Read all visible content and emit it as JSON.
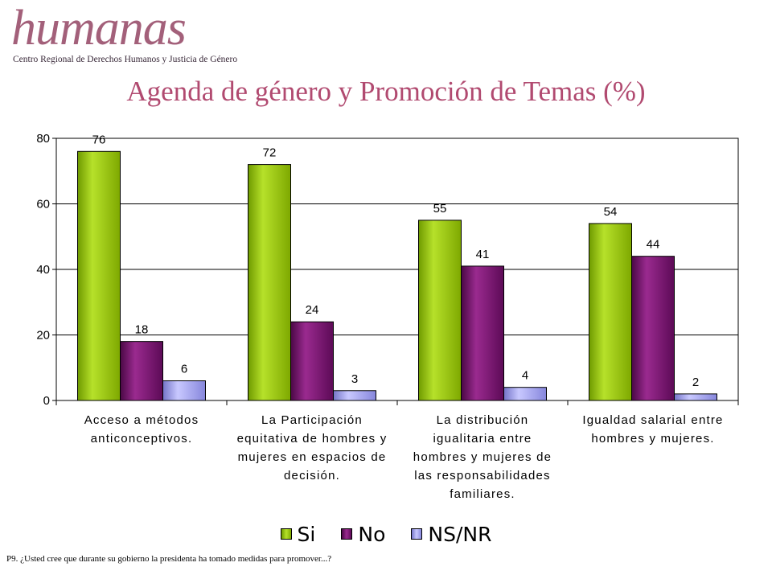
{
  "logo": {
    "word": "humanas",
    "subtitle": "Centro Regional de Derechos Humanos y Justicia de Género"
  },
  "title": "Agenda de género y Promoción de Temas (%)",
  "footnote": "P9. ¿Usted cree que durante su gobierno la presidenta ha tomado medidas para promover...?",
  "colors": {
    "Si": "#8fc400",
    "No": "#7a0f6f",
    "NSNR": "#9b9bf0",
    "title": "#b14a70"
  },
  "chart_data": {
    "type": "bar",
    "title": "Agenda de género y Promoción de Temas (%)",
    "categories": [
      [
        "Acceso a métodos",
        "anticonceptivos."
      ],
      [
        "La Participación",
        "equitativa de hombres y",
        "mujeres en espacios de",
        "decisión."
      ],
      [
        "La distribución",
        "igualitaria entre",
        "hombres y mujeres de",
        "las responsabilidades",
        "familiares."
      ],
      [
        "Igualdad salarial entre",
        "hombres y mujeres."
      ]
    ],
    "series": [
      {
        "name": "Si",
        "values": [
          76,
          72,
          55,
          54
        ]
      },
      {
        "name": "No",
        "values": [
          18,
          24,
          41,
          44
        ]
      },
      {
        "name": "NS/NR",
        "values": [
          6,
          3,
          4,
          2
        ]
      }
    ],
    "yticks": [
      "0",
      "20",
      "40",
      "60",
      "80"
    ],
    "ylim": [
      0,
      80
    ],
    "grid": true,
    "legend": "bottom",
    "data_labels": true
  }
}
